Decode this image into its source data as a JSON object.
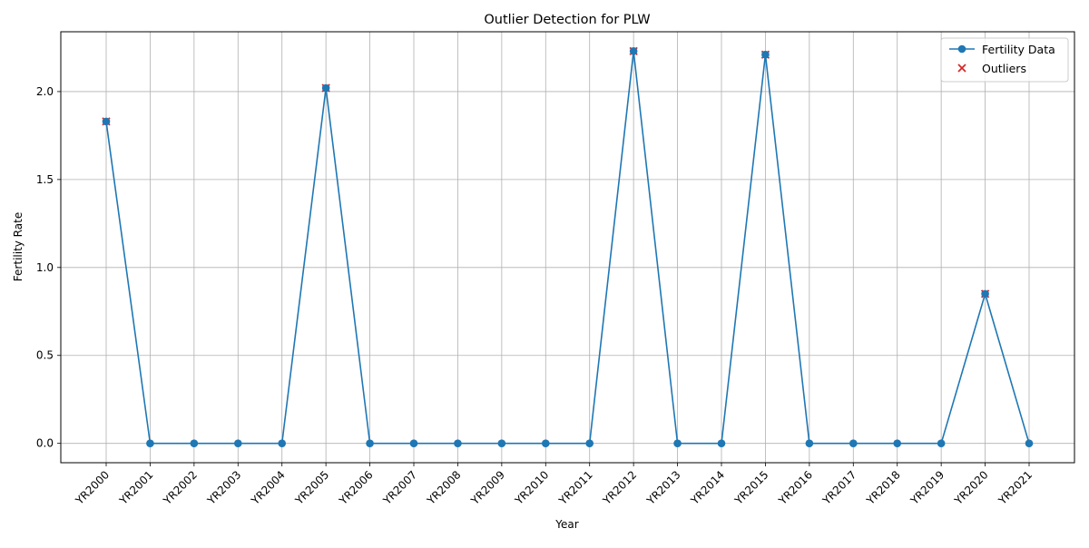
{
  "chart_data": {
    "type": "line",
    "title": "Outlier Detection for PLW",
    "xlabel": "Year",
    "ylabel": "Fertility Rate",
    "categories": [
      "YR2000",
      "YR2001",
      "YR2002",
      "YR2003",
      "YR2004",
      "YR2005",
      "YR2006",
      "YR2007",
      "YR2008",
      "YR2009",
      "YR2010",
      "YR2011",
      "YR2012",
      "YR2013",
      "YR2014",
      "YR2015",
      "YR2016",
      "YR2017",
      "YR2018",
      "YR2019",
      "YR2020",
      "YR2021"
    ],
    "ylim": [
      -0.11,
      2.34
    ],
    "yticks": [
      0.0,
      0.5,
      1.0,
      1.5,
      2.0
    ],
    "ytick_labels": [
      "0.0",
      "0.5",
      "1.0",
      "1.5",
      "2.0"
    ],
    "grid": true,
    "legend_position": "top-right",
    "series": [
      {
        "name": "Fertility Data",
        "kind": "line",
        "marker": "circle",
        "color": "#1f77b4",
        "values": [
          1.83,
          0.0,
          0.0,
          0.0,
          0.0,
          2.02,
          0.0,
          0.0,
          0.0,
          0.0,
          0.0,
          0.0,
          2.23,
          0.0,
          0.0,
          2.21,
          0.0,
          0.0,
          0.0,
          0.0,
          0.85,
          0.0
        ]
      },
      {
        "name": "Outliers",
        "kind": "scatter",
        "marker": "x",
        "color": "#d62728",
        "categories": [
          "YR2000",
          "YR2005",
          "YR2012",
          "YR2015",
          "YR2020"
        ],
        "values": [
          1.83,
          2.02,
          2.23,
          2.21,
          0.85
        ]
      }
    ]
  }
}
